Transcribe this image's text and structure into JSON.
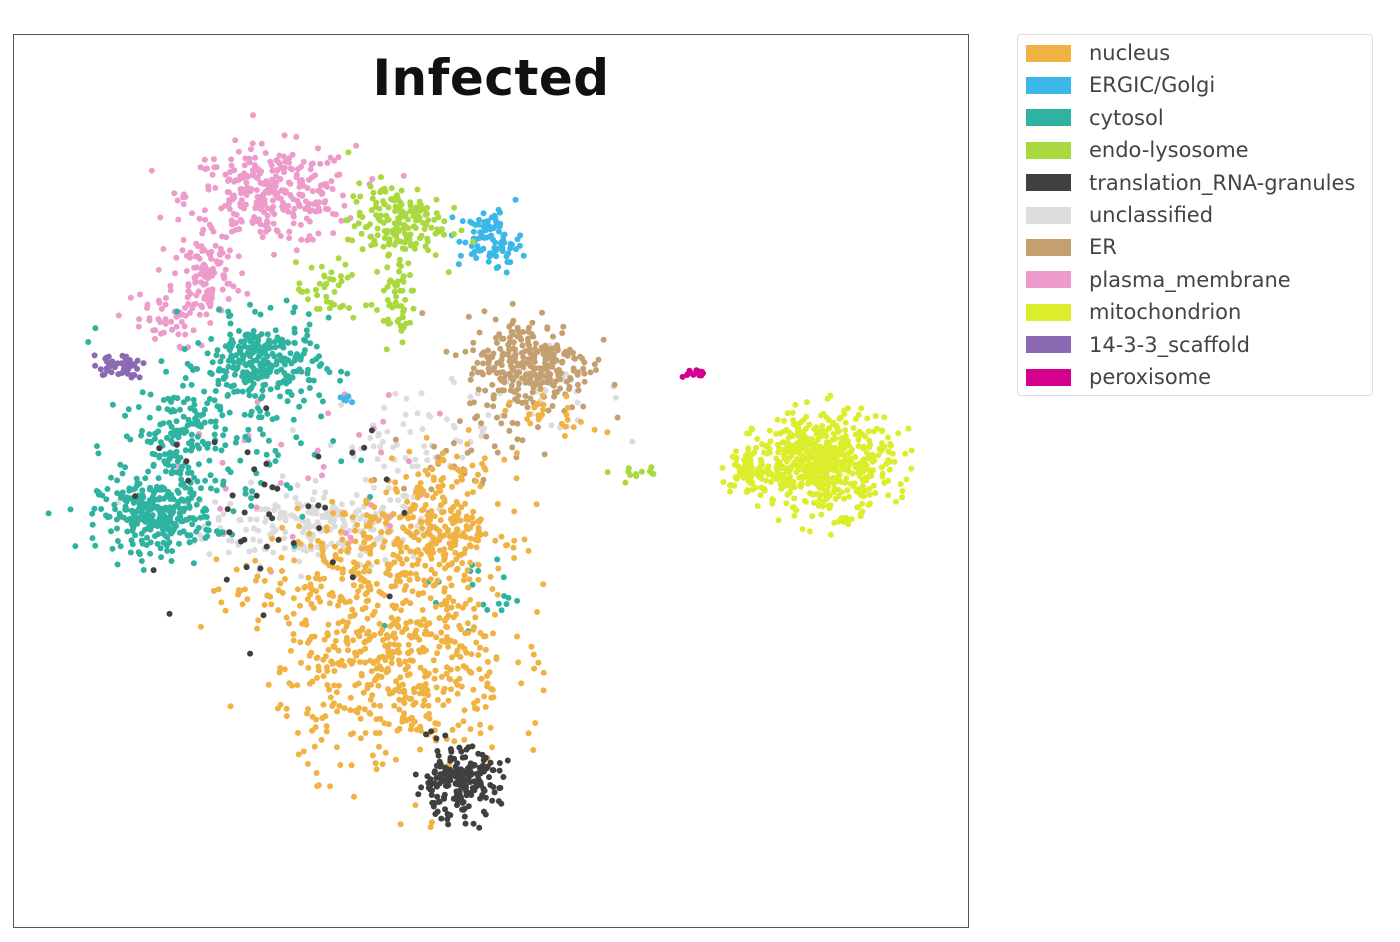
{
  "chart_data": {
    "type": "scatter",
    "title": "Infected",
    "xlabel": "",
    "ylabel": "",
    "xlim": [
      0,
      100
    ],
    "ylim": [
      0,
      100
    ],
    "grid": false,
    "axes_visible": false,
    "legend_position": "outside-right",
    "series": [
      {
        "name": "nucleus",
        "color": "#f0b343",
        "clusters": [
          {
            "x": 40,
            "y": 30,
            "rx": 11,
            "ry": 11,
            "n": 560
          },
          {
            "x": 45,
            "y": 45,
            "rx": 6,
            "ry": 7,
            "n": 260
          },
          {
            "x": 36,
            "y": 42,
            "rx": 7,
            "ry": 6,
            "n": 100
          },
          {
            "x": 27,
            "y": 38,
            "rx": 6,
            "ry": 3,
            "n": 40
          },
          {
            "x": 57,
            "y": 57,
            "rx": 4,
            "ry": 2,
            "n": 25
          }
        ]
      },
      {
        "name": "ERGIC/Golgi",
        "color": "#3bb8e8",
        "clusters": [
          {
            "x": 50,
            "y": 77,
            "rx": 3,
            "ry": 3,
            "n": 90
          },
          {
            "x": 34.8,
            "y": 59,
            "rx": 0.6,
            "ry": 0.6,
            "n": 6
          }
        ]
      },
      {
        "name": "cytosol",
        "color": "#2fb3a0",
        "clusters": [
          {
            "x": 15,
            "y": 46,
            "rx": 5.5,
            "ry": 3.5,
            "n": 290
          },
          {
            "x": 26,
            "y": 63,
            "rx": 5.5,
            "ry": 4.5,
            "n": 260
          },
          {
            "x": 17,
            "y": 55,
            "rx": 4,
            "ry": 5,
            "n": 130
          },
          {
            "x": 22,
            "y": 55,
            "rx": 10,
            "ry": 12,
            "n": 120
          },
          {
            "x": 48,
            "y": 37,
            "rx": 5,
            "ry": 4,
            "n": 20
          }
        ]
      },
      {
        "name": "endo-lysosome",
        "color": "#a9d83f",
        "clusters": [
          {
            "x": 40,
            "y": 79,
            "rx": 4.5,
            "ry": 4,
            "n": 170
          },
          {
            "x": 40,
            "y": 70,
            "rx": 2,
            "ry": 4.5,
            "n": 50
          },
          {
            "x": 33,
            "y": 71,
            "rx": 3,
            "ry": 3,
            "n": 40
          },
          {
            "x": 65,
            "y": 51,
            "rx": 3,
            "ry": 1,
            "n": 12
          }
        ]
      },
      {
        "name": "translation_RNA-granules",
        "color": "#404040",
        "clusters": [
          {
            "x": 46.5,
            "y": 16,
            "rx": 4,
            "ry": 3.5,
            "n": 210
          },
          {
            "x": 27,
            "y": 47,
            "rx": 12,
            "ry": 9,
            "n": 45
          }
        ]
      },
      {
        "name": "unclassified",
        "color": "#dcdcdc",
        "clusters": [
          {
            "x": 32,
            "y": 45,
            "rx": 11,
            "ry": 4,
            "n": 230
          },
          {
            "x": 42,
            "y": 55,
            "rx": 8,
            "ry": 5,
            "n": 60
          },
          {
            "x": 55,
            "y": 60,
            "rx": 8,
            "ry": 4,
            "n": 40
          }
        ]
      },
      {
        "name": "ER",
        "color": "#c4a071",
        "clusters": [
          {
            "x": 54,
            "y": 63,
            "rx": 6,
            "ry": 5,
            "n": 300
          },
          {
            "x": 47,
            "y": 53,
            "rx": 6,
            "ry": 4,
            "n": 30
          }
        ]
      },
      {
        "name": "plasma_membrane",
        "color": "#ec9bcb",
        "clusters": [
          {
            "x": 27,
            "y": 82,
            "rx": 8,
            "ry": 5,
            "n": 310
          },
          {
            "x": 20,
            "y": 73,
            "rx": 3,
            "ry": 5,
            "n": 110
          },
          {
            "x": 15,
            "y": 68,
            "rx": 4,
            "ry": 3,
            "n": 40
          },
          {
            "x": 30,
            "y": 52,
            "rx": 12,
            "ry": 10,
            "n": 40
          }
        ]
      },
      {
        "name": "mitochondrion",
        "color": "#dced2c",
        "clusters": [
          {
            "x": 85,
            "y": 52,
            "rx": 6.5,
            "ry": 5,
            "n": 560
          },
          {
            "x": 77,
            "y": 51,
            "rx": 2,
            "ry": 2.5,
            "n": 60
          }
        ]
      },
      {
        "name": "14-3-3_scaffold",
        "color": "#8c69b3",
        "clusters": [
          {
            "x": 11,
            "y": 63,
            "rx": 2.5,
            "ry": 1.2,
            "n": 45
          }
        ]
      },
      {
        "name": "peroxisome",
        "color": "#d5008d",
        "clusters": [
          {
            "x": 71.3,
            "y": 62,
            "rx": 1,
            "ry": 0.6,
            "n": 14
          }
        ]
      }
    ]
  }
}
